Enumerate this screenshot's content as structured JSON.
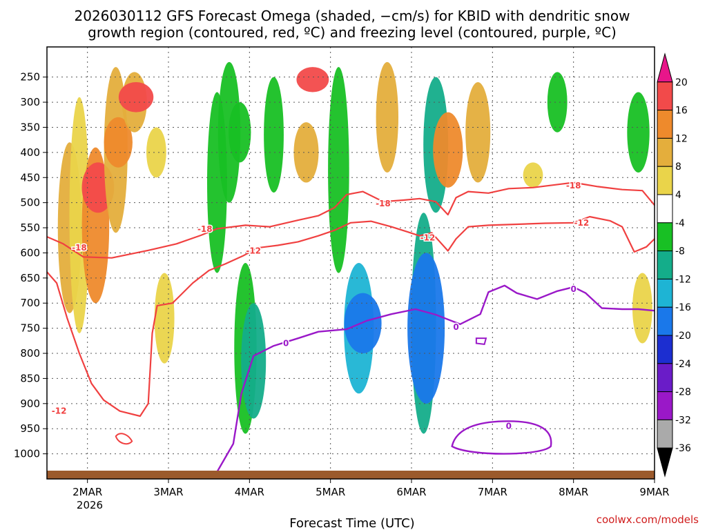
{
  "chart_data": {
    "type": "heatmap",
    "title": [
      "2026030112 GFS Forecast Omega (shaded, −cm/s) for KBID with dendritic snow",
      "growth region (contoured, red, ºC) and freezing level (contoured, purple, ºC)"
    ],
    "xlabel": "Forecast Time (UTC)",
    "ylabel": "",
    "x_range": [
      1.5,
      9.0
    ],
    "x_ticks": [
      {
        "v": 2,
        "label": "2MAR"
      },
      {
        "v": 3,
        "label": "3MAR"
      },
      {
        "v": 4,
        "label": "4MAR"
      },
      {
        "v": 5,
        "label": "5MAR"
      },
      {
        "v": 6,
        "label": "6MAR"
      },
      {
        "v": 7,
        "label": "7MAR"
      },
      {
        "v": 8,
        "label": "8MAR"
      },
      {
        "v": 9,
        "label": "9MAR"
      }
    ],
    "x_year_label": "2026",
    "y_ticks": [
      250,
      300,
      350,
      400,
      450,
      500,
      550,
      600,
      650,
      700,
      750,
      800,
      850,
      900,
      950,
      1000
    ],
    "colorbar": {
      "levels": [
        "20",
        "16",
        "12",
        "8",
        "4",
        "-4",
        "-8",
        "-12",
        "-16",
        "-20",
        "-24",
        "-28",
        "-32",
        "-36"
      ],
      "colors": [
        "#e8168a",
        "#f24a4a",
        "#ee8a2c",
        "#e4ae3c",
        "#ead44a",
        "#ffffff",
        "#18c024",
        "#14ad8a",
        "#1eb4d4",
        "#1a78ea",
        "#1c2ed0",
        "#6a1cc8",
        "#9a18c8",
        "#aaaaaa",
        "#000000"
      ]
    },
    "omega_cells": [
      {
        "x": 1.78,
        "p1": 380,
        "p2": 720,
        "v": 9
      },
      {
        "x": 1.9,
        "p1": 290,
        "p2": 760,
        "v": 6
      },
      {
        "x": 2.1,
        "p1": 390,
        "p2": 700,
        "v": 12
      },
      {
        "x": 2.13,
        "p1": 420,
        "p2": 520,
        "v": 16
      },
      {
        "x": 2.35,
        "p1": 230,
        "p2": 560,
        "v": 9
      },
      {
        "x": 2.38,
        "p1": 330,
        "p2": 430,
        "v": 13
      },
      {
        "x": 2.58,
        "p1": 240,
        "p2": 360,
        "v": 10
      },
      {
        "x": 2.6,
        "p1": 260,
        "p2": 320,
        "v": 18
      },
      {
        "x": 2.85,
        "p1": 350,
        "p2": 450,
        "v": 6
      },
      {
        "x": 2.95,
        "p1": 640,
        "p2": 820,
        "v": 6
      },
      {
        "x": 3.6,
        "p1": 280,
        "p2": 640,
        "v": -6
      },
      {
        "x": 3.75,
        "p1": 220,
        "p2": 500,
        "v": -8
      },
      {
        "x": 3.88,
        "p1": 300,
        "p2": 420,
        "v": -8
      },
      {
        "x": 3.95,
        "p1": 620,
        "p2": 960,
        "v": -8
      },
      {
        "x": 4.05,
        "p1": 700,
        "p2": 930,
        "v": -10
      },
      {
        "x": 4.3,
        "p1": 250,
        "p2": 480,
        "v": -6
      },
      {
        "x": 4.7,
        "p1": 340,
        "p2": 460,
        "v": 10
      },
      {
        "x": 4.78,
        "p1": 230,
        "p2": 280,
        "v": 16
      },
      {
        "x": 5.1,
        "p1": 230,
        "p2": 640,
        "v": -7
      },
      {
        "x": 5.35,
        "p1": 620,
        "p2": 880,
        "v": -14
      },
      {
        "x": 5.4,
        "p1": 680,
        "p2": 800,
        "v": -20
      },
      {
        "x": 5.7,
        "p1": 220,
        "p2": 440,
        "v": 8
      },
      {
        "x": 6.15,
        "p1": 520,
        "p2": 960,
        "v": -10
      },
      {
        "x": 6.18,
        "p1": 600,
        "p2": 900,
        "v": -20
      },
      {
        "x": 6.3,
        "p1": 250,
        "p2": 520,
        "v": -10
      },
      {
        "x": 6.45,
        "p1": 320,
        "p2": 470,
        "v": 14
      },
      {
        "x": 6.82,
        "p1": 260,
        "p2": 460,
        "v": 10
      },
      {
        "x": 7.5,
        "p1": 420,
        "p2": 470,
        "v": 6
      },
      {
        "x": 7.8,
        "p1": 240,
        "p2": 360,
        "v": -6
      },
      {
        "x": 8.8,
        "p1": 280,
        "p2": 440,
        "v": -8
      },
      {
        "x": 8.85,
        "p1": 640,
        "p2": 780,
        "v": 6
      }
    ],
    "contours": [
      {
        "label": "-18",
        "color": "#f04040",
        "width": 2.2,
        "label_at": [
          [
            1.9,
            590
          ],
          [
            3.45,
            553
          ],
          [
            5.65,
            502
          ],
          [
            8.0,
            466
          ]
        ],
        "pts": [
          [
            1.5,
            568
          ],
          [
            1.7,
            582
          ],
          [
            1.95,
            608
          ],
          [
            2.3,
            610
          ],
          [
            2.75,
            595
          ],
          [
            3.1,
            582
          ],
          [
            3.4,
            565
          ],
          [
            3.6,
            552
          ],
          [
            3.95,
            545
          ],
          [
            4.25,
            548
          ],
          [
            4.6,
            535
          ],
          [
            4.85,
            526
          ],
          [
            5.05,
            510
          ],
          [
            5.2,
            484
          ],
          [
            5.4,
            478
          ],
          [
            5.65,
            498
          ],
          [
            5.9,
            495
          ],
          [
            6.1,
            492
          ],
          [
            6.3,
            498
          ],
          [
            6.45,
            524
          ],
          [
            6.55,
            490
          ],
          [
            6.7,
            478
          ],
          [
            6.95,
            481
          ],
          [
            7.2,
            472
          ],
          [
            7.5,
            470
          ],
          [
            7.85,
            463
          ],
          [
            8.0,
            460
          ],
          [
            8.3,
            468
          ],
          [
            8.6,
            474
          ],
          [
            8.85,
            476
          ],
          [
            9.0,
            505
          ]
        ]
      },
      {
        "label": "-12",
        "color": "#f04040",
        "width": 2.2,
        "label_at": [
          [
            4.05,
            596
          ],
          [
            6.2,
            570
          ],
          [
            8.1,
            540
          ],
          [
            1.65,
            915
          ]
        ],
        "pts": [
          [
            1.5,
            638
          ],
          [
            1.62,
            660
          ],
          [
            1.75,
            730
          ],
          [
            1.9,
            800
          ],
          [
            2.05,
            860
          ],
          [
            2.2,
            893
          ],
          [
            2.4,
            915
          ],
          [
            2.65,
            925
          ],
          [
            2.75,
            900
          ],
          [
            2.8,
            760
          ],
          [
            2.86,
            705
          ],
          [
            3.05,
            700
          ],
          [
            3.3,
            660
          ],
          [
            3.5,
            635
          ],
          [
            3.7,
            622
          ],
          [
            3.92,
            606
          ],
          [
            4.1,
            590
          ],
          [
            4.35,
            585
          ],
          [
            4.6,
            578
          ],
          [
            4.85,
            566
          ],
          [
            5.05,
            555
          ],
          [
            5.25,
            540
          ],
          [
            5.5,
            537
          ],
          [
            5.75,
            548
          ],
          [
            5.95,
            558
          ],
          [
            6.1,
            566
          ],
          [
            6.25,
            560
          ],
          [
            6.45,
            596
          ],
          [
            6.55,
            572
          ],
          [
            6.7,
            548
          ],
          [
            6.95,
            545
          ],
          [
            7.3,
            543
          ],
          [
            7.65,
            541
          ],
          [
            8.0,
            540
          ],
          [
            8.2,
            528
          ],
          [
            8.45,
            536
          ],
          [
            8.6,
            548
          ],
          [
            8.75,
            598
          ],
          [
            8.9,
            588
          ],
          [
            9.0,
            572
          ]
        ]
      },
      {
        "label": "0",
        "color": "#9a18c8",
        "width": 2.4,
        "label_at": [
          [
            4.45,
            780
          ],
          [
            6.55,
            748
          ],
          [
            8.0,
            672
          ],
          [
            7.2,
            945
          ]
        ],
        "pts": [
          [
            3.55,
            1050
          ],
          [
            3.8,
            980
          ],
          [
            3.9,
            880
          ],
          [
            4.05,
            805
          ],
          [
            4.3,
            785
          ],
          [
            4.6,
            770
          ],
          [
            4.85,
            757
          ],
          [
            5.2,
            752
          ],
          [
            5.45,
            735
          ],
          [
            5.75,
            722
          ],
          [
            6.05,
            712
          ],
          [
            6.3,
            723
          ],
          [
            6.6,
            742
          ],
          [
            6.85,
            722
          ],
          [
            6.95,
            678
          ],
          [
            7.15,
            665
          ],
          [
            7.3,
            680
          ],
          [
            7.55,
            692
          ],
          [
            7.8,
            676
          ],
          [
            8.0,
            668
          ],
          [
            8.15,
            680
          ],
          [
            8.35,
            710
          ],
          [
            8.6,
            712
          ],
          [
            8.8,
            712
          ],
          [
            9.0,
            715
          ]
        ]
      }
    ]
  },
  "footer": {
    "credit": "coolwx.com/models"
  }
}
